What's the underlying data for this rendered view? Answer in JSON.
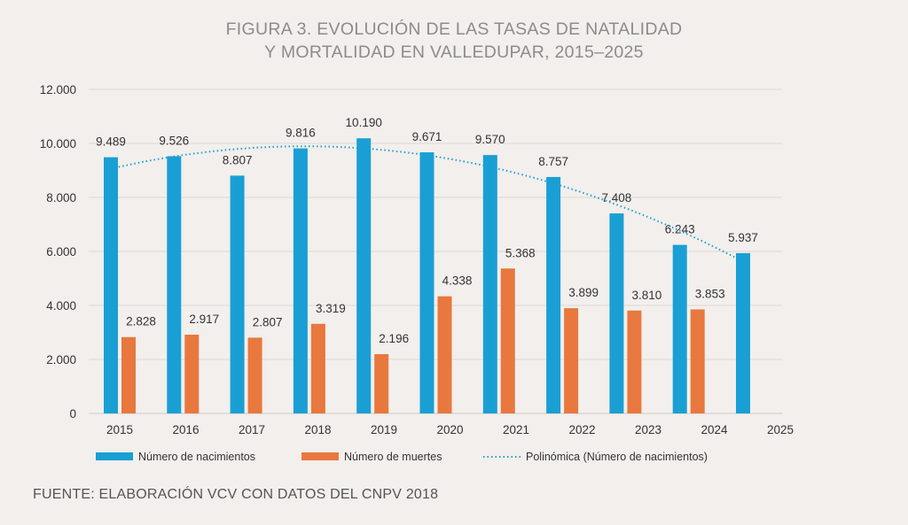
{
  "title_line1": "FIGURA 3. EVOLUCIÓN DE LAS TASAS DE NATALIDAD",
  "title_line2": "Y MORTALIDAD EN VALLEDUPAR, 2015–2025",
  "source": "FUENTE: ELABORACIÓN VCV CON DATOS DEL CNPV 2018",
  "chart_data": {
    "type": "bar",
    "title": "FIGURA 3. EVOLUCIÓN DE LAS TASAS DE NATALIDAD Y MORTALIDAD EN VALLEDUPAR, 2015–2025",
    "categories": [
      "2015",
      "2016",
      "2017",
      "2018",
      "2019",
      "2020",
      "2021",
      "2022",
      "2023",
      "2024",
      "2025"
    ],
    "series": [
      {
        "name": "Número de nacimientos",
        "color": "#1a9fd4",
        "values": [
          9489,
          9526,
          8807,
          9816,
          10190,
          9671,
          9570,
          8757,
          7408,
          6243,
          5937
        ],
        "labels": [
          "9.489",
          "9.526",
          "8.807",
          "9.816",
          "10.190",
          "9.671",
          "9.570",
          "8.757",
          "7.408",
          "6.243",
          "5.937"
        ]
      },
      {
        "name": "Número de muertes",
        "color": "#e8783e",
        "values": [
          2828,
          2917,
          2807,
          3319,
          2196,
          4338,
          5368,
          3899,
          3810,
          3853,
          null
        ],
        "labels": [
          "2.828",
          "2.917",
          "2.807",
          "3.319",
          "2.196",
          "4.338",
          "5.368",
          "3.899",
          "3.810",
          "3.853",
          null
        ]
      }
    ],
    "trendline": {
      "name": "Polinómica (Número de nacimientos)",
      "type": "polynomial",
      "color": "#1a9fd4",
      "style": "dotted"
    },
    "yticks": [
      "0",
      "2.000",
      "4.000",
      "6.000",
      "8.000",
      "10.000",
      "12.000"
    ],
    "ylim": [
      0,
      12000
    ],
    "grid": true,
    "legend": "bottom",
    "xlabel": "",
    "ylabel": ""
  }
}
